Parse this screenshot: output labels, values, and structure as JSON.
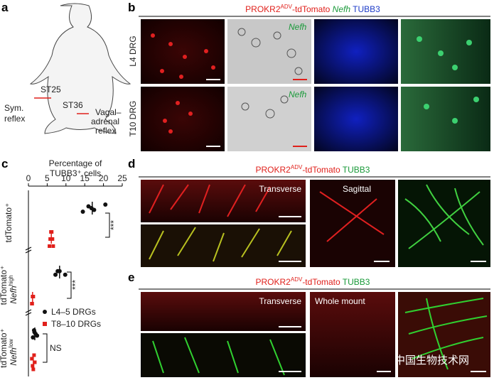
{
  "panel_a": {
    "label": "a",
    "sym_reflex": [
      "Sym.",
      "reflex"
    ],
    "st25": "ST25",
    "st36": "ST36",
    "vagal_reflex": [
      "Vagal–",
      "adrenal",
      "reflex"
    ]
  },
  "panel_b": {
    "label": "b",
    "header": {
      "gene": "PROKR2",
      "sup": "ADV",
      "reporter": "-tdTomato",
      "nefh": "Nefh",
      "tubb3": "TUBB3"
    },
    "rows": [
      "L4 DRG",
      "T10 DRG"
    ],
    "nefh_labels": [
      "Nefh",
      "Nefh"
    ]
  },
  "chart_data": {
    "type": "dotplot",
    "label": "c",
    "title": [
      "Percentage of",
      "TUBB3⁺ cells"
    ],
    "categories": [
      {
        "main": "tdTomato⁺"
      },
      {
        "main": "tdTomato⁺",
        "sub": "Nefh",
        "sup": "high"
      },
      {
        "main": "tdTomato⁺",
        "sub": "Nefh",
        "sup": "low"
      }
    ],
    "xlim": [
      0,
      25
    ],
    "xticks": [
      0,
      5,
      10,
      15,
      20,
      25
    ],
    "series": [
      {
        "name": "L4–5 DRGs",
        "color": "#111111",
        "marker": "circle",
        "values": [
          [
            14.5,
            16,
            16.8,
            17.5,
            20.5
          ],
          [
            7.2,
            7.8,
            8.3,
            9.8
          ],
          [
            1.2,
            1.6,
            1.9,
            2.3,
            1.5
          ]
        ],
        "means": [
          17,
          8.3,
          1.7
        ]
      },
      {
        "name": "T8–10 DRGs",
        "color": "#e0201b",
        "marker": "square",
        "values": [
          [
            5.6,
            6.0,
            6.4,
            5.8,
            6.2,
            6.6
          ],
          [
            0.9,
            1.1,
            1.3,
            1.0
          ],
          [
            1.3,
            0.9,
            1.7,
            1.1,
            1.5
          ]
        ],
        "means": [
          6.1,
          1.1,
          1.3
        ]
      }
    ],
    "significance": [
      "***",
      "***",
      "NS"
    ]
  },
  "panel_d": {
    "label": "d",
    "header": {
      "gene": "PROKR2",
      "sup": "ADV",
      "reporter": "-tdTomato",
      "tubb3": "TUBB3"
    },
    "views": [
      "Transverse",
      "Sagittal"
    ]
  },
  "panel_e": {
    "label": "e",
    "header": {
      "gene": "PROKR2",
      "sup": "ADV",
      "reporter": "-tdTomato",
      "tubb3": "TUBB3"
    },
    "views": [
      "Transverse",
      "Whole mount"
    ]
  },
  "watermark": "中国生物技术网"
}
